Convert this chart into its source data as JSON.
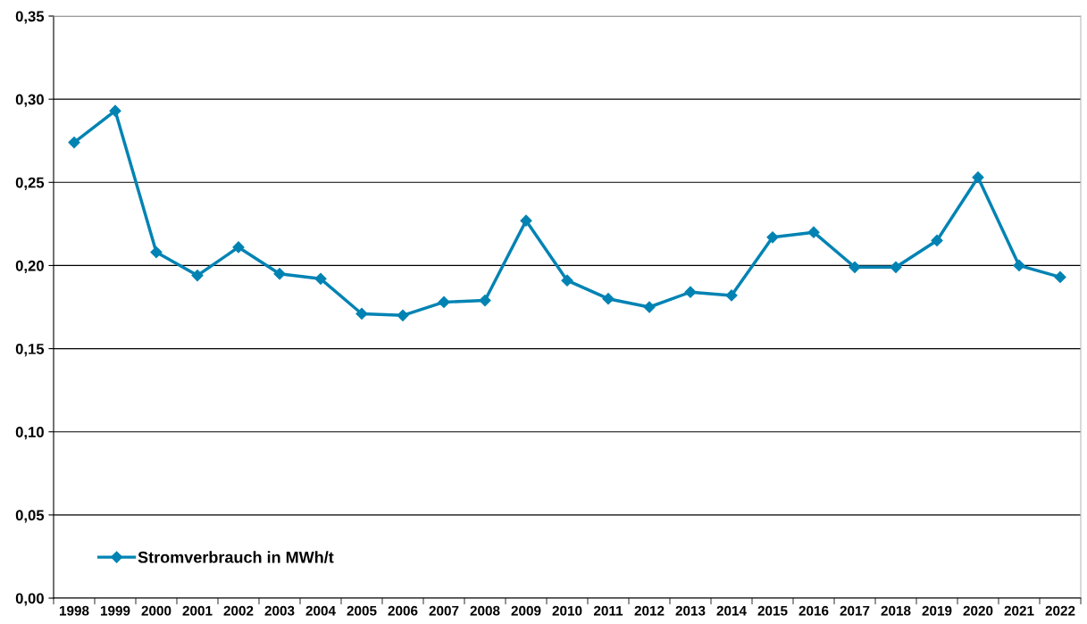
{
  "chart_data": {
    "type": "line",
    "categories": [
      "1998",
      "1999",
      "2000",
      "2001",
      "2002",
      "2003",
      "2004",
      "2005",
      "2006",
      "2007",
      "2008",
      "2009",
      "2010",
      "2011",
      "2012",
      "2013",
      "2014",
      "2015",
      "2016",
      "2017",
      "2018",
      "2019",
      "2020",
      "2021",
      "2022"
    ],
    "series": [
      {
        "name": "Stromverbrauch in MWh/t",
        "color": "#0083b3",
        "values": [
          0.274,
          0.293,
          0.208,
          0.194,
          0.211,
          0.195,
          0.192,
          0.171,
          0.17,
          0.178,
          0.179,
          0.227,
          0.191,
          0.18,
          0.175,
          0.184,
          0.182,
          0.217,
          0.22,
          0.199,
          0.199,
          0.215,
          0.253,
          0.2,
          0.193
        ]
      }
    ],
    "ylim": [
      0,
      0.35
    ],
    "yticks": [
      {
        "value": 0,
        "label": "0,00"
      },
      {
        "value": 0.05,
        "label": "0,05"
      },
      {
        "value": 0.1,
        "label": "0,10"
      },
      {
        "value": 0.15,
        "label": "0,15"
      },
      {
        "value": 0.2,
        "label": "0,20"
      },
      {
        "value": 0.25,
        "label": "0,25"
      },
      {
        "value": 0.3,
        "label": "0,30"
      },
      {
        "value": 0.35,
        "label": "0,35"
      }
    ],
    "grid": "y",
    "legend": "bottom left",
    "marker": "diamond",
    "line_style": "solid"
  }
}
